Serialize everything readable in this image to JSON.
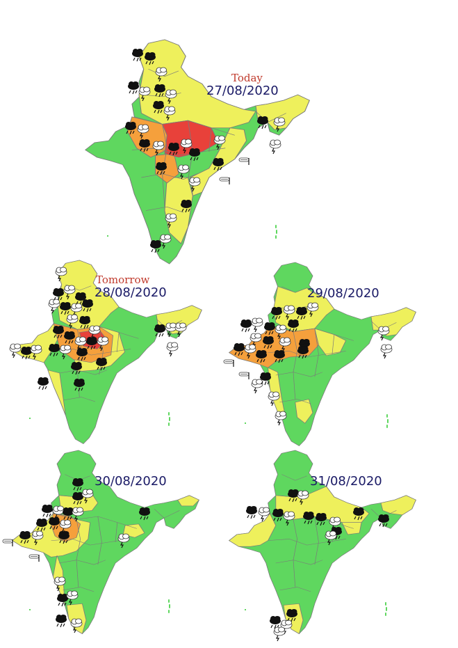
{
  "colors": {
    "green": "#5fd75f",
    "yellow": "#eef05c",
    "orange": "#f5a03c",
    "red": "#e8413a",
    "border": "#7a7a7a",
    "caption_red": "#c0392b",
    "caption_blue": "#1a1a66"
  },
  "icons": [
    "thunderstorm-rain-cloud-icon",
    "strong-wind-icon"
  ],
  "maps": [
    {
      "day_label": "Today",
      "date": "27/08/2020"
    },
    {
      "day_label": "Tomorrow",
      "date": "28/08/2020"
    },
    {
      "day_label": "",
      "date": "29/08/2020"
    },
    {
      "day_label": "",
      "date": "30/08/2020"
    },
    {
      "day_label": "",
      "date": "31/08/2020"
    }
  ]
}
